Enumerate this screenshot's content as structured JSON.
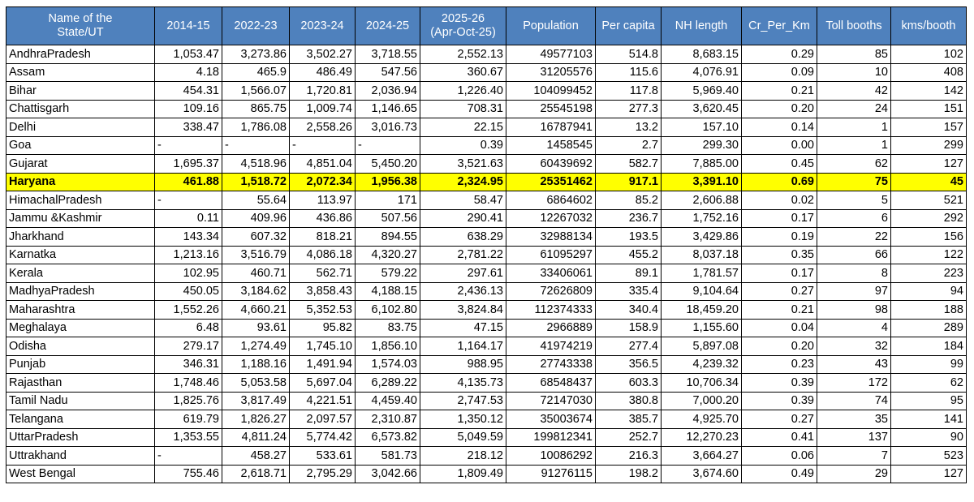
{
  "columns": [
    {
      "line1": "Name of the",
      "line2": "State/UT"
    },
    {
      "line1": "2014-15",
      "line2": ""
    },
    {
      "line1": "2022-23",
      "line2": ""
    },
    {
      "line1": "2023-24",
      "line2": ""
    },
    {
      "line1": "2024-25",
      "line2": ""
    },
    {
      "line1": "2025-26",
      "line2": "(Apr-Oct-25)"
    },
    {
      "line1": "Population",
      "line2": ""
    },
    {
      "line1": "Per capita",
      "line2": ""
    },
    {
      "line1": "NH length",
      "line2": ""
    },
    {
      "line1": "Cr_Per_Km",
      "line2": ""
    },
    {
      "line1": "Toll booths",
      "line2": ""
    },
    {
      "line1": "kms/booth",
      "line2": ""
    }
  ],
  "highlight_color": "#ffff00",
  "header_color": "#4f81bd",
  "rows": [
    {
      "highlight": false,
      "cells": [
        "AndhraPradesh",
        "1,053.47",
        "3,273.86",
        "3,502.27",
        "3,718.55",
        "2,552.13",
        "49577103",
        "514.8",
        "8,683.15",
        "0.29",
        "85",
        "102"
      ]
    },
    {
      "highlight": false,
      "cells": [
        "Assam",
        "4.18",
        "465.9",
        "486.49",
        "547.56",
        "360.67",
        "31205576",
        "115.6",
        "4,076.91",
        "0.09",
        "10",
        "408"
      ]
    },
    {
      "highlight": false,
      "cells": [
        "Bihar",
        "454.31",
        "1,566.07",
        "1,720.81",
        "2,036.94",
        "1,226.40",
        "104099452",
        "117.8",
        "5,969.40",
        "0.21",
        "42",
        "142"
      ]
    },
    {
      "highlight": false,
      "cells": [
        "Chattisgarh",
        "109.16",
        "865.75",
        "1,009.74",
        "1,146.65",
        "708.31",
        "25545198",
        "277.3",
        "3,620.45",
        "0.20",
        "24",
        "151"
      ]
    },
    {
      "highlight": false,
      "cells": [
        "Delhi",
        "338.47",
        "1,786.08",
        "2,558.26",
        "3,016.73",
        "22.15",
        "16787941",
        "13.2",
        "157.10",
        "0.14",
        "1",
        "157"
      ]
    },
    {
      "highlight": false,
      "cells": [
        "Goa",
        "-",
        "-",
        "-",
        "-",
        "0.39",
        "1458545",
        "2.7",
        "299.30",
        "0.00",
        "1",
        "299"
      ]
    },
    {
      "highlight": false,
      "cells": [
        "Gujarat",
        "1,695.37",
        "4,518.96",
        "4,851.04",
        "5,450.20",
        "3,521.63",
        "60439692",
        "582.7",
        "7,885.00",
        "0.45",
        "62",
        "127"
      ]
    },
    {
      "highlight": true,
      "cells": [
        "Haryana",
        "461.88",
        "1,518.72",
        "2,072.34",
        "1,956.38",
        "2,324.95",
        "25351462",
        "917.1",
        "3,391.10",
        "0.69",
        "75",
        "45"
      ]
    },
    {
      "highlight": false,
      "cells": [
        "HimachalPradesh",
        "-",
        "55.64",
        "113.97",
        "171",
        "58.47",
        "6864602",
        "85.2",
        "2,606.88",
        "0.02",
        "5",
        "521"
      ]
    },
    {
      "highlight": false,
      "cells": [
        "Jammu &Kashmir",
        "0.11",
        "409.96",
        "436.86",
        "507.56",
        "290.41",
        "12267032",
        "236.7",
        "1,752.16",
        "0.17",
        "6",
        "292"
      ]
    },
    {
      "highlight": false,
      "cells": [
        "Jharkhand",
        "143.34",
        "607.32",
        "818.21",
        "894.55",
        "638.29",
        "32988134",
        "193.5",
        "3,429.86",
        "0.19",
        "22",
        "156"
      ]
    },
    {
      "highlight": false,
      "cells": [
        "Karnatka",
        "1,213.16",
        "3,516.79",
        "4,086.18",
        "4,320.27",
        "2,781.22",
        "61095297",
        "455.2",
        "8,037.18",
        "0.35",
        "66",
        "122"
      ]
    },
    {
      "highlight": false,
      "cells": [
        "Kerala",
        "102.95",
        "460.71",
        "562.71",
        "579.22",
        "297.61",
        "33406061",
        "89.1",
        "1,781.57",
        "0.17",
        "8",
        "223"
      ]
    },
    {
      "highlight": false,
      "cells": [
        "MadhyaPradesh",
        "450.05",
        "3,184.62",
        "3,858.43",
        "4,188.15",
        "2,436.13",
        "72626809",
        "335.4",
        "9,104.64",
        "0.27",
        "97",
        "94"
      ]
    },
    {
      "highlight": false,
      "cells": [
        "Maharashtra",
        "1,552.26",
        "4,660.21",
        "5,352.53",
        "6,102.80",
        "3,824.84",
        "112374333",
        "340.4",
        "18,459.20",
        "0.21",
        "98",
        "188"
      ]
    },
    {
      "highlight": false,
      "cells": [
        "Meghalaya",
        "6.48",
        "93.61",
        "95.82",
        "83.75",
        "47.15",
        "2966889",
        "158.9",
        "1,155.60",
        "0.04",
        "4",
        "289"
      ]
    },
    {
      "highlight": false,
      "cells": [
        "Odisha",
        "279.17",
        "1,274.49",
        "1,745.10",
        "1,856.10",
        "1,164.17",
        "41974219",
        "277.4",
        "5,897.08",
        "0.20",
        "32",
        "184"
      ]
    },
    {
      "highlight": false,
      "cells": [
        "Punjab",
        "346.31",
        "1,188.16",
        "1,491.94",
        "1,574.03",
        "988.95",
        "27743338",
        "356.5",
        "4,239.32",
        "0.23",
        "43",
        "99"
      ]
    },
    {
      "highlight": false,
      "cells": [
        "Rajasthan",
        "1,748.46",
        "5,053.58",
        "5,697.04",
        "6,289.22",
        "4,135.73",
        "68548437",
        "603.3",
        "10,706.34",
        "0.39",
        "172",
        "62"
      ]
    },
    {
      "highlight": false,
      "cells": [
        "Tamil Nadu",
        "1,825.76",
        "3,817.49",
        "4,221.51",
        "4,459.40",
        "2,747.53",
        "72147030",
        "380.8",
        "7,000.20",
        "0.39",
        "74",
        "95"
      ]
    },
    {
      "highlight": false,
      "cells": [
        "Telangana",
        "619.79",
        "1,826.27",
        "2,097.57",
        "2,310.87",
        "1,350.12",
        "35003674",
        "385.7",
        "4,925.70",
        "0.27",
        "35",
        "141"
      ]
    },
    {
      "highlight": false,
      "cells": [
        "UttarPradesh",
        "1,353.55",
        "4,811.24",
        "5,774.42",
        "6,573.82",
        "5,049.59",
        "199812341",
        "252.7",
        "12,270.23",
        "0.41",
        "137",
        "90"
      ]
    },
    {
      "highlight": false,
      "cells": [
        "Uttrakhand",
        "-",
        "458.27",
        "533.61",
        "581.73",
        "218.12",
        "10086292",
        "216.3",
        "3,664.27",
        "0.06",
        "7",
        "523"
      ]
    },
    {
      "highlight": false,
      "cells": [
        "West Bengal",
        "755.46",
        "2,618.71",
        "2,795.29",
        "3,042.66",
        "1,809.49",
        "91276115",
        "198.2",
        "3,674.60",
        "0.49",
        "29",
        "127"
      ]
    }
  ]
}
